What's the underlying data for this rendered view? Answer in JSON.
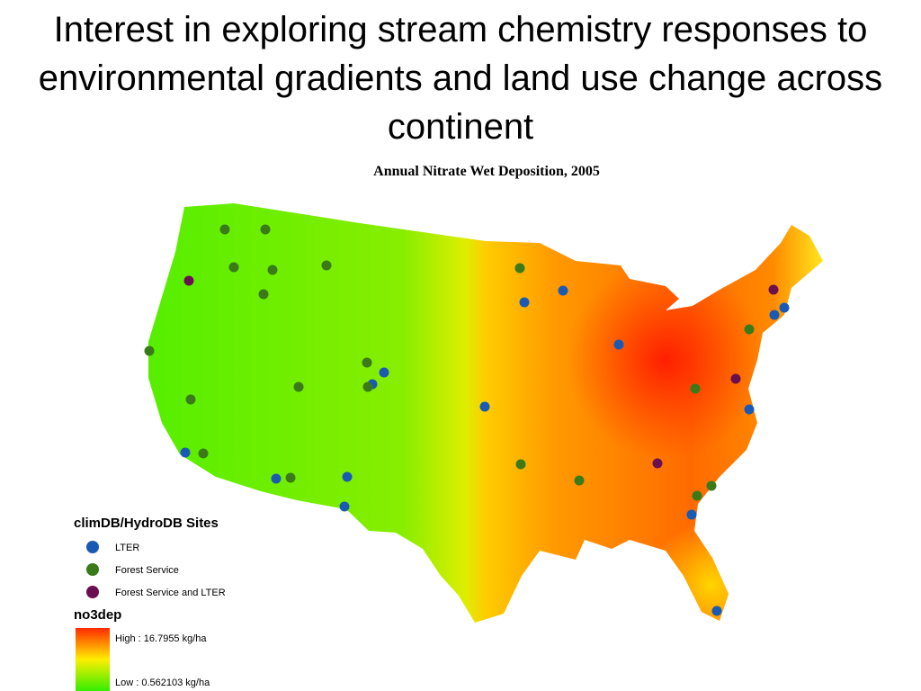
{
  "title": "Interest in exploring stream chemistry responses to environmental gradients and land use change across continent",
  "map": {
    "title": "Annual Nitrate Wet Deposition, 2005"
  },
  "legend": {
    "sites": {
      "title": "climDB/HydroDB Sites",
      "items": [
        "LTER",
        "Forest Service",
        "Forest Service and LTER"
      ]
    },
    "no3dep": {
      "title": "no3dep",
      "high": "High : 16.7955 kg/ha",
      "low": "Low : 0.562103 kg/ha"
    }
  }
}
